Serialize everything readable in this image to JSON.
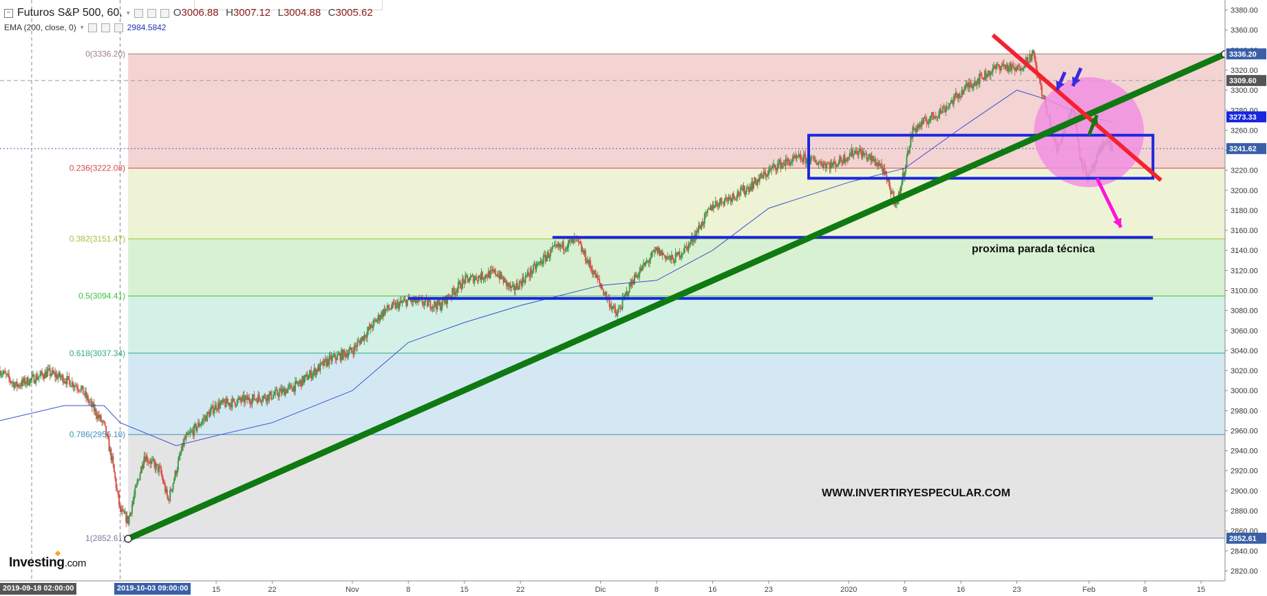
{
  "header": {
    "symbol": "Futuros S&P 500, 60,",
    "ohlc": [
      {
        "k": "O",
        "v": "3006.88"
      },
      {
        "k": "H",
        "v": "3007.12"
      },
      {
        "k": "L",
        "v": "3004.88"
      },
      {
        "k": "C",
        "v": "3005.62"
      }
    ],
    "indicator": "EMA (200, close, 0)",
    "indicator_value": "2984.5842"
  },
  "logo": {
    "main": "Investing",
    "suffix": ".com"
  },
  "watermark": "WWW.INVERTIRYESPECULAR.COM",
  "annotation": "proxima parada técnica",
  "date_tags": {
    "left": "2019-09-18 02:00:00",
    "mid": "2019-10-03 09:00:00"
  },
  "colors": {
    "up": "#3c9a4a",
    "down": "#d9534f",
    "ema": "#3a4fd0",
    "trend_support": "#0f7a12",
    "trend_resistance": "#f5212e",
    "box_blue": "#1a27e0",
    "circle_fill": "#f08fe0",
    "arrow_pink": "#ff14d8"
  },
  "chart_data": {
    "type": "candlestick",
    "title": "",
    "series_name": "Futuros S&P 500, 60",
    "y_range": [
      2810,
      3390
    ],
    "y_ticks": [
      2820,
      2840,
      2860,
      2880,
      2900,
      2920,
      2940,
      2960,
      2980,
      3000,
      3020,
      3040,
      3060,
      3080,
      3100,
      3120,
      3140,
      3160,
      3180,
      3200,
      3220,
      3240,
      3260,
      3280,
      3300,
      3320,
      3340,
      3360,
      3380
    ],
    "x_range": [
      "2019-09-18",
      "2020-02-18"
    ],
    "x_ticks": [
      {
        "date": "2019-10-15",
        "label": "15"
      },
      {
        "date": "2019-10-22",
        "label": "22"
      },
      {
        "date": "2019-11-01",
        "label": "Nov"
      },
      {
        "date": "2019-11-08",
        "label": "8"
      },
      {
        "date": "2019-11-15",
        "label": "15"
      },
      {
        "date": "2019-11-22",
        "label": "22"
      },
      {
        "date": "2019-12-02",
        "label": "Dic"
      },
      {
        "date": "2019-12-09",
        "label": "8"
      },
      {
        "date": "2019-12-16",
        "label": "16"
      },
      {
        "date": "2019-12-23",
        "label": "23"
      },
      {
        "date": "2020-01-02",
        "label": "2020"
      },
      {
        "date": "2020-01-09",
        "label": "9"
      },
      {
        "date": "2020-01-16",
        "label": "16"
      },
      {
        "date": "2020-01-23",
        "label": "23"
      },
      {
        "date": "2020-02-01",
        "label": "Feb"
      },
      {
        "date": "2020-02-08",
        "label": "8"
      },
      {
        "date": "2020-02-15",
        "label": "15"
      }
    ],
    "price_path": [
      [
        "2019-09-18",
        3020
      ],
      [
        "2019-09-20",
        3005
      ],
      [
        "2019-09-24",
        3018
      ],
      [
        "2019-09-26",
        3012
      ],
      [
        "2019-09-28",
        3003
      ],
      [
        "2019-10-01",
        2965
      ],
      [
        "2019-10-02",
        2930
      ],
      [
        "2019-10-03",
        2880
      ],
      [
        "2019-10-04",
        2870
      ],
      [
        "2019-10-06",
        2935
      ],
      [
        "2019-10-08",
        2920
      ],
      [
        "2019-10-09",
        2890
      ],
      [
        "2019-10-11",
        2950
      ],
      [
        "2019-10-15",
        2985
      ],
      [
        "2019-10-18",
        2990
      ],
      [
        "2019-10-22",
        2995
      ],
      [
        "2019-10-25",
        3005
      ],
      [
        "2019-10-29",
        3030
      ],
      [
        "2019-11-01",
        3040
      ],
      [
        "2019-11-05",
        3080
      ],
      [
        "2019-11-08",
        3090
      ],
      [
        "2019-11-12",
        3085
      ],
      [
        "2019-11-15",
        3110
      ],
      [
        "2019-11-19",
        3118
      ],
      [
        "2019-11-21",
        3100
      ],
      [
        "2019-11-26",
        3140
      ],
      [
        "2019-11-29",
        3150
      ],
      [
        "2019-12-03",
        3090
      ],
      [
        "2019-12-04",
        3075
      ],
      [
        "2019-12-06",
        3110
      ],
      [
        "2019-12-09",
        3140
      ],
      [
        "2019-12-11",
        3130
      ],
      [
        "2019-12-13",
        3145
      ],
      [
        "2019-12-16",
        3185
      ],
      [
        "2019-12-20",
        3200
      ],
      [
        "2019-12-24",
        3225
      ],
      [
        "2019-12-27",
        3232
      ],
      [
        "2019-12-31",
        3225
      ],
      [
        "2020-01-03",
        3240
      ],
      [
        "2020-01-06",
        3225
      ],
      [
        "2020-01-08",
        3185
      ],
      [
        "2020-01-10",
        3260
      ],
      [
        "2020-01-14",
        3282
      ],
      [
        "2020-01-17",
        3305
      ],
      [
        "2020-01-21",
        3325
      ],
      [
        "2020-01-23",
        3320
      ],
      [
        "2020-01-25",
        3336
      ],
      [
        "2020-01-27",
        3270
      ],
      [
        "2020-01-28",
        3240
      ],
      [
        "2020-01-30",
        3285
      ],
      [
        "2020-01-31",
        3230
      ],
      [
        "2020-02-01",
        3212
      ],
      [
        "2020-02-03",
        3250
      ],
      [
        "2020-02-04",
        3242
      ]
    ],
    "ema_200": [
      [
        "2019-09-18",
        2970
      ],
      [
        "2019-09-26",
        2985
      ],
      [
        "2019-10-01",
        2985
      ],
      [
        "2019-10-03",
        2968
      ],
      [
        "2019-10-10",
        2945
      ],
      [
        "2019-10-15",
        2955
      ],
      [
        "2019-10-22",
        2968
      ],
      [
        "2019-11-01",
        3000
      ],
      [
        "2019-11-08",
        3048
      ],
      [
        "2019-11-15",
        3068
      ],
      [
        "2019-11-22",
        3085
      ],
      [
        "2019-12-02",
        3105
      ],
      [
        "2019-12-09",
        3110
      ],
      [
        "2019-12-16",
        3140
      ],
      [
        "2019-12-23",
        3182
      ],
      [
        "2020-01-02",
        3208
      ],
      [
        "2020-01-09",
        3222
      ],
      [
        "2020-01-16",
        3262
      ],
      [
        "2020-01-23",
        3300
      ],
      [
        "2020-01-27",
        3290
      ],
      [
        "2020-01-31",
        3275
      ],
      [
        "2020-02-04",
        3268
      ]
    ],
    "fibonacci": [
      {
        "label": "0(3336.20)",
        "level": 3336.2,
        "color": "#a08080",
        "band": "#f4d3d3"
      },
      {
        "label": "0.236(3222.08)",
        "level": 3222.08,
        "color": "#d44a4a",
        "band": "#eef3d6"
      },
      {
        "label": "0.382(3151.47)",
        "level": 3151.47,
        "color": "#9ec23c",
        "band": "#d8f1d3"
      },
      {
        "label": "0.5(3094.41)",
        "level": 3094.41,
        "color": "#3cc03c",
        "band": "#d3f1e7"
      },
      {
        "label": "0.618(3037.34)",
        "level": 3037.34,
        "color": "#2fa88a",
        "band": "#d4e8f3"
      },
      {
        "label": "0.786(2956.10)",
        "level": 2956.1,
        "color": "#3d8fbd",
        "band": "#e4e4e4"
      },
      {
        "label": "1(2852.61)",
        "level": 2852.61,
        "color": "#7a7aa0",
        "band": null
      }
    ],
    "fib_range_dates": [
      "2019-10-04",
      "2020-02-18"
    ],
    "price_labels": [
      {
        "value": 3336.2,
        "text": "3336.20",
        "bg": "#3a5fa8"
      },
      {
        "value": 3309.6,
        "text": "3309.60",
        "bg": "#555555"
      },
      {
        "value": 3273.33,
        "text": "3273.33",
        "bg": "#1a27e0"
      },
      {
        "value": 3241.62,
        "text": "3241.62",
        "bg": "#3a5fa8"
      },
      {
        "value": 2852.61,
        "text": "2852.61",
        "bg": "#3a5fa8"
      }
    ],
    "hlines": [
      3309.6,
      3241.62
    ],
    "drawings": {
      "support_trend": [
        [
          "2019-10-04",
          2852
        ],
        [
          "2020-02-18",
          3336
        ]
      ],
      "resistance_trend": [
        [
          "2020-01-20",
          3355
        ],
        [
          "2020-02-10",
          3210
        ]
      ],
      "range_box": [
        [
          "2019-12-28",
          3255
        ],
        [
          "2020-02-09",
          3212
        ]
      ],
      "support_line_1": [
        [
          "2019-11-26",
          3153
        ],
        [
          "2020-02-09",
          3153
        ]
      ],
      "support_line_2": [
        [
          "2019-11-08",
          3092
        ],
        [
          "2020-02-09",
          3092
        ]
      ]
    }
  }
}
